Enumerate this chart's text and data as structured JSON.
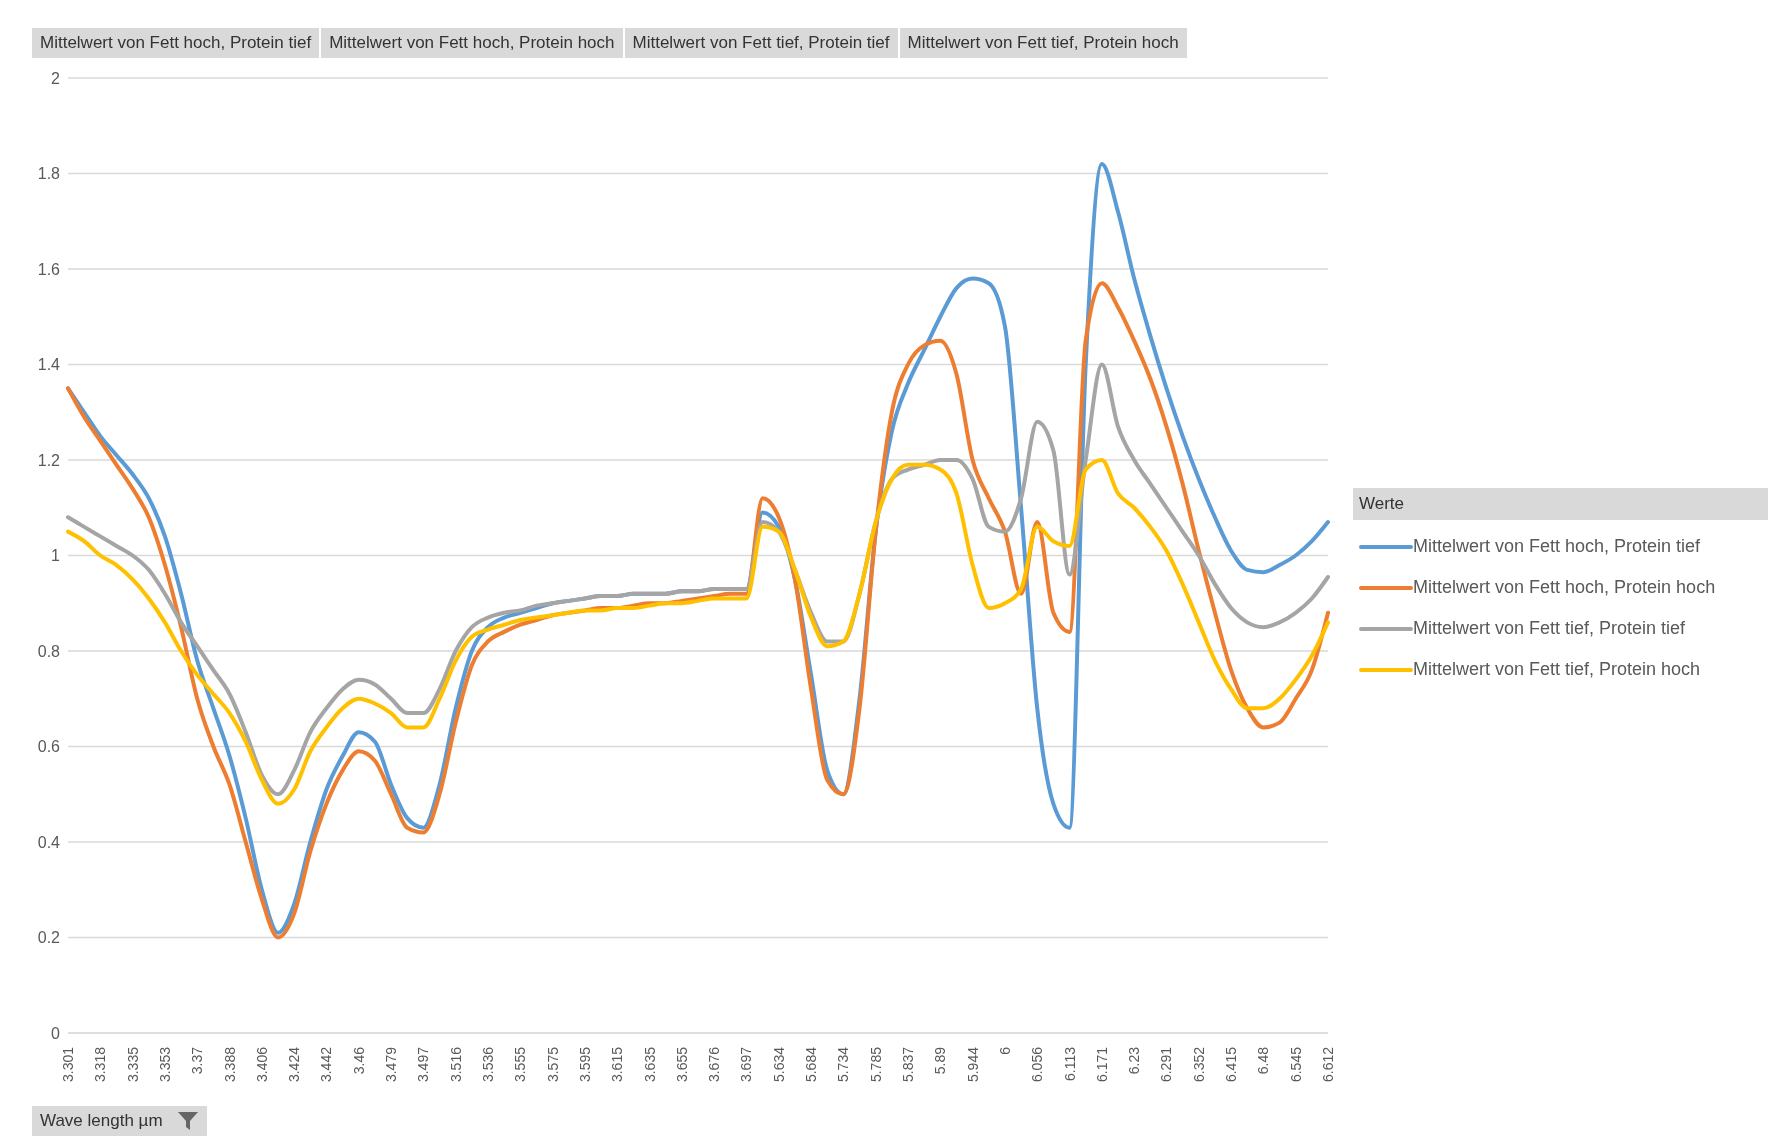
{
  "chart_data": {
    "type": "line",
    "xlabel": "Wave length µm",
    "legend_title": "Werte",
    "legend": "right",
    "grid": "y",
    "marker": "none",
    "line_style": "solid",
    "annotations": [
      "Mittelwert von Fett hoch, Protein tief",
      "Mittelwert von Fett hoch, Protein hoch",
      "Mittelwert von Fett tief, Protein tief",
      "Mittelwert von Fett tief, Protein hoch"
    ],
    "categories": [
      "3.301",
      null,
      "3.318",
      null,
      "3.335",
      null,
      "3.353",
      null,
      "3.37",
      null,
      "3.388",
      null,
      "3.406",
      null,
      "3.424",
      null,
      "3.442",
      null,
      "3.46",
      null,
      "3.479",
      null,
      "3.497",
      null,
      "3.516",
      null,
      "3.536",
      null,
      "3.555",
      null,
      "3.575",
      null,
      "3.595",
      null,
      "3.615",
      null,
      "3.635",
      null,
      "3.655",
      null,
      "3.676",
      null,
      "3.697",
      null,
      "5.634",
      null,
      "5.684",
      null,
      "5.734",
      null,
      "5.785",
      null,
      "5.837",
      null,
      "5.89",
      null,
      "5.944",
      null,
      "6",
      null,
      "6.056",
      null,
      "6.113",
      null,
      "6.171",
      null,
      "6.23",
      null,
      "6.291",
      null,
      "6.352",
      null,
      "6.415",
      null,
      "6.48",
      null,
      "6.545",
      null,
      "6.612"
    ],
    "ylim": [
      0,
      2
    ],
    "yticks": [
      0,
      0.2,
      0.4,
      0.6,
      0.8,
      1,
      1.2,
      1.4,
      1.6,
      1.8,
      2
    ],
    "series": [
      {
        "name": "Mittelwert von Fett hoch, Protein tief",
        "color": "#5b9bd5",
        "values": [
          1.35,
          1.3,
          1.25,
          1.21,
          1.17,
          1.12,
          1.04,
          0.92,
          0.78,
          0.68,
          0.58,
          0.45,
          0.3,
          0.21,
          0.27,
          0.4,
          0.51,
          0.58,
          0.63,
          0.61,
          0.52,
          0.45,
          0.43,
          0.52,
          0.68,
          0.8,
          0.85,
          0.87,
          0.88,
          0.89,
          0.9,
          0.905,
          0.91,
          0.915,
          0.915,
          0.92,
          0.92,
          0.92,
          0.925,
          0.925,
          0.93,
          0.93,
          0.93,
          1.09,
          1.06,
          0.95,
          0.75,
          0.55,
          0.5,
          0.7,
          1.05,
          1.26,
          1.36,
          1.43,
          1.5,
          1.56,
          1.58,
          1.57,
          1.48,
          1.1,
          0.68,
          0.48,
          0.43,
          1.4,
          1.82,
          1.72,
          1.58,
          1.46,
          1.35,
          1.25,
          1.16,
          1.08,
          1.01,
          0.97,
          0.965,
          0.98,
          1.0,
          1.03,
          1.07
        ]
      },
      {
        "name": "Mittelwert von Fett hoch, Protein hoch",
        "color": "#ed7d31",
        "values": [
          1.35,
          1.29,
          1.24,
          1.19,
          1.14,
          1.08,
          0.98,
          0.85,
          0.7,
          0.6,
          0.52,
          0.4,
          0.28,
          0.2,
          0.25,
          0.38,
          0.48,
          0.55,
          0.59,
          0.57,
          0.5,
          0.43,
          0.42,
          0.5,
          0.65,
          0.77,
          0.82,
          0.84,
          0.855,
          0.865,
          0.875,
          0.88,
          0.885,
          0.89,
          0.89,
          0.895,
          0.9,
          0.9,
          0.905,
          0.91,
          0.915,
          0.92,
          0.92,
          1.12,
          1.08,
          0.95,
          0.72,
          0.53,
          0.5,
          0.68,
          1.05,
          1.3,
          1.4,
          1.44,
          1.45,
          1.38,
          1.2,
          1.12,
          1.05,
          0.92,
          1.07,
          0.88,
          0.84,
          1.45,
          1.57,
          1.52,
          1.45,
          1.37,
          1.27,
          1.15,
          1.01,
          0.88,
          0.76,
          0.68,
          0.64,
          0.65,
          0.7,
          0.76,
          0.88
        ]
      },
      {
        "name": "Mittelwert von Fett tief, Protein tief",
        "color": "#a5a5a5",
        "values": [
          1.08,
          1.06,
          1.04,
          1.02,
          1.0,
          0.97,
          0.92,
          0.86,
          0.81,
          0.76,
          0.71,
          0.63,
          0.54,
          0.5,
          0.55,
          0.63,
          0.68,
          0.72,
          0.74,
          0.73,
          0.7,
          0.67,
          0.67,
          0.72,
          0.8,
          0.85,
          0.87,
          0.88,
          0.885,
          0.895,
          0.9,
          0.905,
          0.91,
          0.915,
          0.915,
          0.92,
          0.92,
          0.92,
          0.925,
          0.925,
          0.93,
          0.93,
          0.93,
          1.07,
          1.05,
          0.97,
          0.88,
          0.82,
          0.82,
          0.92,
          1.07,
          1.16,
          1.18,
          1.19,
          1.2,
          1.2,
          1.16,
          1.06,
          1.05,
          1.12,
          1.28,
          1.22,
          0.96,
          1.2,
          1.4,
          1.27,
          1.2,
          1.15,
          1.1,
          1.05,
          1.0,
          0.94,
          0.89,
          0.86,
          0.85,
          0.86,
          0.88,
          0.91,
          0.955
        ]
      },
      {
        "name": "Mittelwert von Fett tief, Protein hoch",
        "color": "#ffc000",
        "values": [
          1.05,
          1.03,
          1.0,
          0.98,
          0.95,
          0.91,
          0.86,
          0.8,
          0.75,
          0.71,
          0.67,
          0.61,
          0.53,
          0.48,
          0.51,
          0.59,
          0.64,
          0.68,
          0.7,
          0.69,
          0.67,
          0.64,
          0.64,
          0.7,
          0.78,
          0.83,
          0.845,
          0.855,
          0.865,
          0.87,
          0.875,
          0.88,
          0.885,
          0.885,
          0.89,
          0.89,
          0.895,
          0.9,
          0.9,
          0.905,
          0.91,
          0.91,
          0.91,
          1.06,
          1.05,
          0.97,
          0.87,
          0.81,
          0.82,
          0.92,
          1.07,
          1.16,
          1.19,
          1.19,
          1.18,
          1.13,
          0.98,
          0.89,
          0.9,
          0.93,
          1.06,
          1.03,
          1.02,
          1.18,
          1.2,
          1.13,
          1.1,
          1.06,
          1.01,
          0.94,
          0.86,
          0.78,
          0.72,
          0.68,
          0.68,
          0.7,
          0.74,
          0.79,
          0.86
        ]
      }
    ]
  }
}
